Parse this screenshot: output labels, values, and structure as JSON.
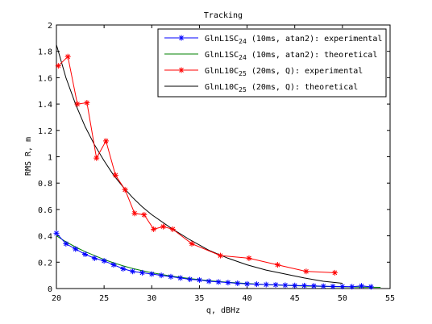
{
  "chart_data": {
    "type": "line",
    "title": "Tracking",
    "xlabel": "q, dBHz",
    "ylabel": "RMS R, m",
    "xlim": [
      20,
      55
    ],
    "ylim": [
      0,
      2
    ],
    "xticks": [
      20,
      25,
      30,
      35,
      40,
      45,
      50,
      55
    ],
    "yticks": [
      0,
      0.2,
      0.4,
      0.6,
      0.8,
      1,
      1.2,
      1.4,
      1.6,
      1.8,
      2
    ],
    "xtick_labels": [
      "20",
      "25",
      "30",
      "35",
      "40",
      "45",
      "50",
      "55"
    ],
    "ytick_labels": [
      "0",
      "0.2",
      "0.4",
      "0.6",
      "0.8",
      "1",
      "1.2",
      "1.4",
      "1.6",
      "1.8",
      "2"
    ],
    "grid": false,
    "legend_position": "top-right",
    "series": [
      {
        "name_main": "GlnL1SC",
        "name_sub": "24",
        "name_rest": " (10ms, atan2): experimental",
        "color": "#0000ff",
        "marker": "asterisk",
        "line": "solid",
        "x": [
          20,
          21,
          22,
          23,
          24,
          25,
          26,
          27,
          28,
          29,
          30,
          31,
          32,
          33,
          34,
          35,
          36,
          37,
          38,
          39,
          40,
          41,
          42,
          43,
          44,
          45,
          46,
          47,
          48,
          49,
          50,
          51,
          52,
          53
        ],
        "y": [
          0.42,
          0.34,
          0.3,
          0.26,
          0.23,
          0.21,
          0.18,
          0.15,
          0.13,
          0.12,
          0.11,
          0.1,
          0.09,
          0.08,
          0.07,
          0.065,
          0.055,
          0.05,
          0.045,
          0.04,
          0.035,
          0.033,
          0.03,
          0.028,
          0.025,
          0.023,
          0.022,
          0.02,
          0.018,
          0.016,
          0.015,
          0.014,
          0.02,
          0.013
        ]
      },
      {
        "name_main": "GlnL1SC",
        "name_sub": "24",
        "name_rest": " (10ms, atan2): theoretical",
        "color": "#008000",
        "marker": "none",
        "line": "solid",
        "x": [
          20,
          21,
          22,
          23,
          24,
          25,
          26,
          27,
          28,
          29,
          30,
          32,
          34,
          36,
          38,
          40,
          42,
          44,
          46,
          48,
          50,
          52,
          54
        ],
        "y": [
          0.4,
          0.355,
          0.315,
          0.28,
          0.25,
          0.22,
          0.195,
          0.172,
          0.152,
          0.135,
          0.12,
          0.095,
          0.076,
          0.06,
          0.048,
          0.038,
          0.03,
          0.024,
          0.019,
          0.016,
          0.013,
          0.011,
          0.009
        ]
      },
      {
        "name_main": "GlnL10C",
        "name_sub": "25",
        "name_rest": " (20ms, Q): experimental",
        "color": "#ff0000",
        "marker": "asterisk",
        "line": "solid",
        "x": [
          20.2,
          21.2,
          22.2,
          23.2,
          24.2,
          25.2,
          26.2,
          27.2,
          28.2,
          29.2,
          30.2,
          31.2,
          32.2,
          34.2,
          37.2,
          40.2,
          43.2,
          46.2,
          49.2
        ],
        "y": [
          1.69,
          1.76,
          1.4,
          1.41,
          0.99,
          1.12,
          0.86,
          0.75,
          0.57,
          0.56,
          0.45,
          0.47,
          0.45,
          0.34,
          0.25,
          0.23,
          0.18,
          0.13,
          0.12
        ]
      },
      {
        "name_main": "GlnL10C",
        "name_sub": "25",
        "name_rest": " (20ms, Q): theoretical",
        "color": "#000000",
        "marker": "none",
        "line": "solid",
        "x": [
          20,
          21,
          22,
          23,
          24,
          25,
          26,
          27,
          28,
          29,
          30,
          32,
          34,
          36,
          38,
          40,
          42,
          44,
          46,
          48,
          50
        ],
        "y": [
          1.85,
          1.6,
          1.4,
          1.23,
          1.09,
          0.97,
          0.86,
          0.77,
          0.69,
          0.62,
          0.56,
          0.46,
          0.37,
          0.29,
          0.23,
          0.18,
          0.14,
          0.11,
          0.08,
          0.055,
          0.04
        ]
      }
    ]
  }
}
